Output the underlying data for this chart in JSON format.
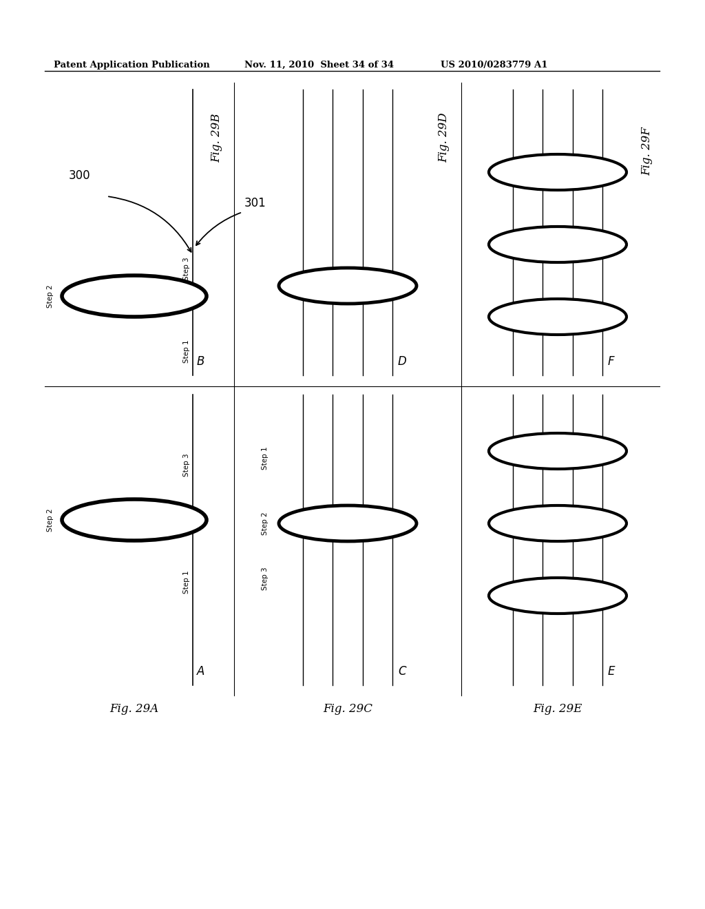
{
  "header_left": "Patent Application Publication",
  "header_mid": "Nov. 11, 2010  Sheet 34 of 34",
  "header_right": "US 2010/0283779 A1",
  "background": "#ffffff",
  "text_color": "#000000"
}
